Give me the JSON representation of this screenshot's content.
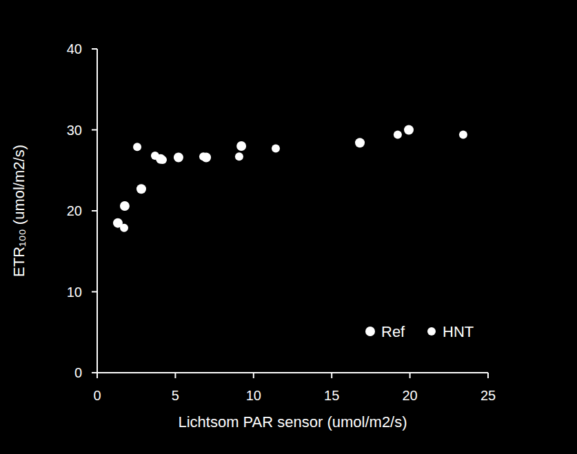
{
  "chart_data": {
    "type": "scatter",
    "xlabel": "Lichtsom PAR sensor (umol/m2/s)",
    "ylabel": "ETR₁₀₀ (umol/m2/s)",
    "xlim": [
      0,
      25
    ],
    "xticks": [
      0,
      5,
      10,
      15,
      20,
      25
    ],
    "ylim": [
      0,
      40
    ],
    "yticks": [
      0,
      10,
      20,
      30,
      40
    ],
    "grid": false,
    "legend": "lower right",
    "series": [
      {
        "name": "Ref",
        "color": "#ffffff",
        "marker": "circle",
        "x": [
          1.32,
          1.76,
          2.82,
          4.06,
          5.2,
          6.97,
          9.22,
          16.8,
          19.93
        ],
        "values": [
          18.5,
          20.6,
          22.7,
          26.4,
          26.6,
          26.6,
          28.0,
          28.4,
          30.0
        ]
      },
      {
        "name": "HNT",
        "color": "#ffffff",
        "marker": "circle",
        "x": [
          1.72,
          2.56,
          3.7,
          4.19,
          6.79,
          9.08,
          11.42,
          19.22,
          23.41
        ],
        "values": [
          17.9,
          27.9,
          26.8,
          26.3,
          26.7,
          26.7,
          27.7,
          29.4,
          29.4
        ]
      }
    ]
  }
}
